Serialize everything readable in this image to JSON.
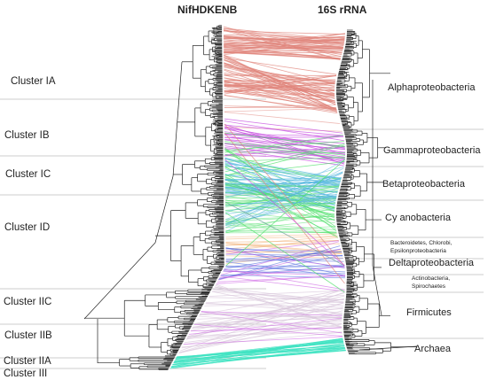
{
  "headers": {
    "left": "NifHDKENB",
    "right": "16S rRNA"
  },
  "clusters": [
    "Cluster IA",
    "Cluster IB",
    "Cluster IC",
    "Cluster ID",
    "Cluster IIC",
    "Cluster IIB",
    "Cluster IIA",
    "Cluster III"
  ],
  "taxa": [
    {
      "lines": [
        "Alphaproteobacteria"
      ]
    },
    {
      "lines": [
        "Gammaproteobacteria"
      ]
    },
    {
      "lines": [
        "Betaproteobacteria"
      ]
    },
    {
      "lines": [
        "Cy anobacteria"
      ]
    },
    {
      "lines": [
        "Bacteroidetes, Chlorobi,",
        "Epsilonproteobacteria"
      ]
    },
    {
      "lines": [
        "Deltaproteobacteria"
      ]
    },
    {
      "lines": [
        "Actinobacteria,",
        "Spirochaetes"
      ]
    },
    {
      "lines": [
        "Firmicutes"
      ]
    },
    {
      "lines": [
        "Archaea"
      ]
    }
  ],
  "colors": {
    "alpha": "#e0857c",
    "gamma": "#4fe06a",
    "beta": "#58b8e0",
    "magenta": "#c74fe0",
    "orange": "#f2b27a",
    "blue": "#5a72e0",
    "firmicutes": "#d9c8dc",
    "archaea": "#3fe3c2",
    "tree": "#222222",
    "separator": "#bdbdbd"
  }
}
